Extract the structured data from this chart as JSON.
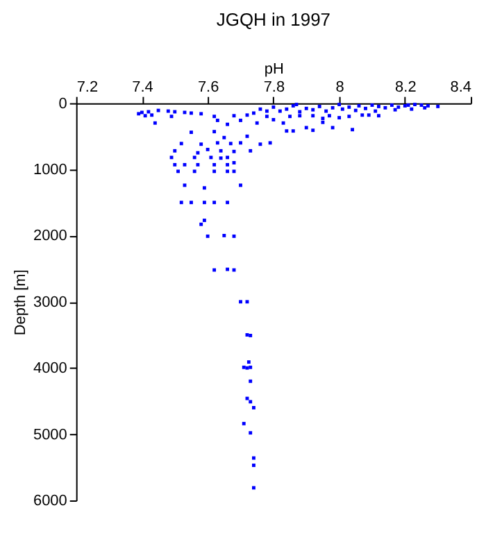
{
  "chart_data": {
    "type": "scatter",
    "title": "JGQH in 1997",
    "xlabel": "pH",
    "ylabel": "Depth [m]",
    "color": "#0000ff",
    "marker": "square",
    "grid": false,
    "xlim": [
      7.2,
      8.4
    ],
    "xticks": [
      7.2,
      7.4,
      7.6,
      7.8,
      8,
      8.2,
      8.4
    ],
    "ylim": [
      6000,
      0
    ],
    "yticks": [
      0,
      1000,
      2000,
      3000,
      4000,
      5000,
      6000
    ],
    "x": [
      8.3,
      8.27,
      8.25,
      8.23,
      8.21,
      8.2,
      8.18,
      8.16,
      8.14,
      8.12,
      8.1,
      8.08,
      8.06,
      8.05,
      8.03,
      8.01,
      7.98,
      7.96,
      7.94,
      7.92,
      7.9,
      7.88,
      7.86,
      7.84,
      7.82,
      7.8,
      7.87,
      8.26,
      8.22,
      8.17,
      8.11,
      8.0,
      7.78,
      7.76,
      7.74,
      8.12,
      8.07,
      8.03,
      7.97,
      7.92,
      7.88,
      7.85,
      8.0,
      7.95,
      8.09,
      7.72,
      7.68,
      7.62,
      7.58,
      7.53,
      7.5,
      7.48,
      7.45,
      7.42,
      7.4,
      7.39,
      7.41,
      7.43,
      7.44,
      7.49,
      7.55,
      7.63,
      7.66,
      7.7,
      7.75,
      7.8,
      7.78,
      7.83,
      7.9,
      7.95,
      7.98,
      8.04,
      7.86,
      7.92,
      7.84,
      7.79,
      7.76,
      7.7,
      7.67,
      7.63,
      7.58,
      7.52,
      7.72,
      7.62,
      7.55,
      7.65,
      7.73,
      7.68,
      7.64,
      7.6,
      7.57,
      7.5,
      7.49,
      7.56,
      7.61,
      7.64,
      7.66,
      7.68,
      7.66,
      7.62,
      7.57,
      7.53,
      7.5,
      7.51,
      7.56,
      7.62,
      7.66,
      7.68,
      7.7,
      7.53,
      7.59,
      7.52,
      7.55,
      7.59,
      7.62,
      7.66,
      7.59,
      7.58,
      7.6,
      7.65,
      7.68,
      7.62,
      7.66,
      7.68,
      7.7,
      7.72,
      7.72,
      7.73,
      7.725,
      7.71,
      7.73,
      7.72,
      7.73,
      7.72,
      7.73,
      7.74,
      7.71,
      7.73,
      7.74,
      7.74,
      7.74
    ],
    "values": [
      50,
      40,
      30,
      20,
      30,
      40,
      60,
      30,
      70,
      50,
      30,
      80,
      40,
      110,
      60,
      90,
      70,
      120,
      50,
      100,
      80,
      130,
      40,
      90,
      120,
      60,
      20,
      70,
      90,
      100,
      120,
      20,
      120,
      90,
      150,
      190,
      180,
      200,
      190,
      190,
      190,
      200,
      220,
      230,
      180,
      180,
      190,
      200,
      160,
      140,
      130,
      120,
      110,
      130,
      140,
      160,
      190,
      180,
      300,
      200,
      150,
      260,
      320,
      260,
      300,
      250,
      200,
      300,
      370,
      290,
      370,
      400,
      420,
      410,
      420,
      600,
      620,
      600,
      610,
      600,
      620,
      610,
      500,
      430,
      440,
      520,
      720,
      730,
      720,
      700,
      750,
      720,
      820,
      820,
      820,
      830,
      820,
      900,
      930,
      930,
      930,
      930,
      930,
      1030,
      1030,
      1030,
      1030,
      1030,
      1240,
      1240,
      1280,
      1500,
      1500,
      1500,
      1500,
      1500,
      1770,
      1830,
      2010,
      2000,
      2010,
      2520,
      2510,
      2520,
      3000,
      3000,
      3500,
      3510,
      3910,
      3990,
      3990,
      4000,
      4200,
      4460,
      4510,
      4600,
      4840,
      4980,
      5360,
      5470,
      5810
    ]
  }
}
